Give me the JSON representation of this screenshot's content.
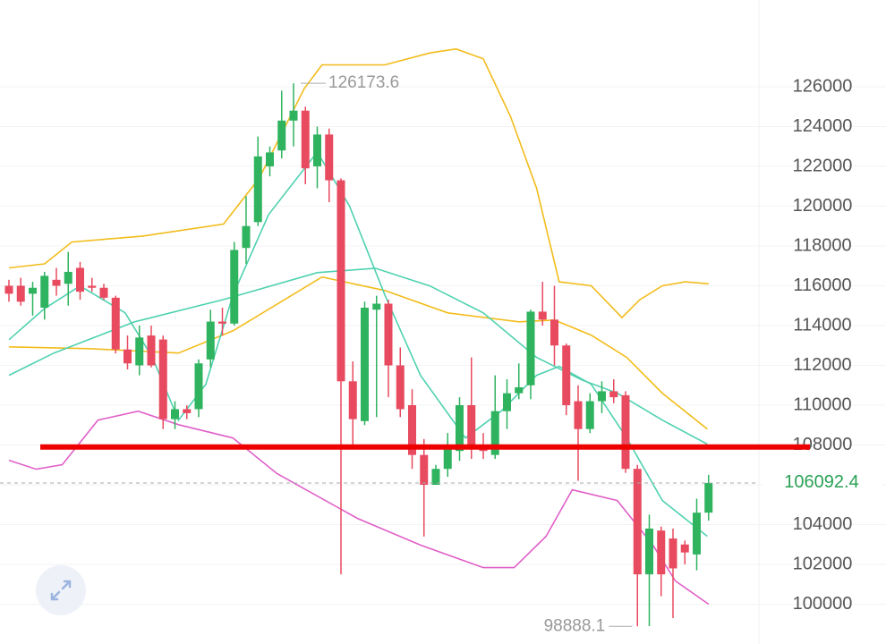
{
  "chart_data": {
    "type": "candlestick",
    "up_color": "#2fb35f",
    "down_color": "#e84a5f",
    "open": [
      116000,
      116000,
      115600,
      114900,
      116300,
      116100,
      116900,
      116000,
      115900,
      115400,
      112800,
      112000,
      113500,
      113300,
      109300,
      109800,
      109800,
      112300,
      114200,
      114100,
      117900,
      119200,
      122000,
      122800,
      124300,
      124800,
      122000,
      123600,
      121300,
      111200,
      109200,
      114800,
      115100,
      112000,
      110000,
      107500,
      106000,
      106800,
      107700,
      110000,
      107900,
      107500,
      109700,
      110600,
      111000,
      114700,
      114300,
      113000,
      110200,
      108800,
      110200,
      110700,
      110500,
      106800,
      101500,
      103700,
      103300,
      103000,
      102500,
      104600
    ],
    "high": [
      116300,
      116400,
      116200,
      116700,
      116900,
      117700,
      117200,
      116400,
      116100,
      115500,
      113500,
      114000,
      114000,
      113500,
      110200,
      110000,
      112300,
      114800,
      114900,
      118200,
      120500,
      123500,
      123000,
      125800,
      126173.6,
      125000,
      124000,
      123900,
      121400,
      112200,
      115200,
      115500,
      115300,
      112900,
      110800,
      108300,
      107000,
      108600,
      110400,
      112400,
      108600,
      111500,
      111300,
      112100,
      114800,
      116200,
      116000,
      113100,
      111000,
      110600,
      111200,
      111300,
      110700,
      107000,
      104500,
      103900,
      103800,
      103200,
      105300,
      106500
    ],
    "low": [
      115200,
      115000,
      114500,
      114300,
      115500,
      115000,
      115300,
      115700,
      115300,
      112600,
      111800,
      111500,
      111900,
      108800,
      108800,
      109300,
      109400,
      111900,
      113500,
      114000,
      117100,
      119000,
      121500,
      122400,
      123000,
      121100,
      120900,
      120200,
      101500,
      107800,
      109000,
      109400,
      110400,
      109400,
      106800,
      103400,
      106000,
      106400,
      107200,
      107300,
      107300,
      107300,
      108800,
      110300,
      110300,
      114000,
      112000,
      109500,
      106200,
      108600,
      109600,
      110100,
      106600,
      98888.1,
      98900,
      100400,
      99300,
      102000,
      101700,
      104200
    ],
    "close": [
      115600,
      115200,
      115900,
      116500,
      116000,
      116700,
      115700,
      115900,
      115400,
      112800,
      112100,
      113400,
      112000,
      109300,
      109800,
      109600,
      112100,
      114200,
      114100,
      117800,
      119000,
      122500,
      122700,
      124300,
      124800,
      121900,
      123600,
      121300,
      111200,
      109300,
      114900,
      115100,
      112000,
      109800,
      107500,
      106000,
      106800,
      107800,
      110000,
      107900,
      107700,
      109700,
      110600,
      110900,
      114700,
      114300,
      113000,
      110000,
      108800,
      110200,
      110700,
      110400,
      106800,
      101500,
      103800,
      101500,
      101800,
      102600,
      104600,
      106092.4
    ],
    "lines": [
      {
        "color": "#f2bc1b",
        "x": [
          0,
          3,
          5.3,
          11.3,
          18.1,
          21.1,
          24.9,
          26.4,
          31.7,
          35.5,
          37.7,
          40,
          42.3,
          44.5,
          46.4,
          49.1,
          51.7,
          53.2,
          55.1,
          57,
          59
        ],
        "values": [
          116900,
          117100,
          118200,
          118500,
          119100,
          121400,
          125900,
          127100,
          127100,
          127700,
          127900,
          127400,
          124500,
          120900,
          116200,
          116000,
          114400,
          115300,
          116000,
          116200,
          116100
        ]
      },
      {
        "color": "#f2bc1b",
        "x": [
          0,
          6.8,
          14.3,
          18.9,
          26.4,
          31.7,
          37,
          43,
          46,
          49.1,
          52.1,
          55.1,
          58.9
        ],
        "values": [
          112930,
          112840,
          112620,
          113740,
          116440,
          115760,
          114640,
          114190,
          114280,
          113520,
          112400,
          110600,
          108800
        ]
      },
      {
        "color": "#4fd1b0",
        "x": [
          0,
          3,
          6,
          9.8,
          12.1,
          14.3,
          16.6,
          18.9,
          21.9,
          26,
          28.7,
          31.7,
          34.7,
          38.5,
          41.5,
          44.5,
          46.4,
          49.1,
          52.1,
          55.1,
          58.9
        ],
        "values": [
          113290,
          114860,
          115990,
          114640,
          112400,
          109250,
          111050,
          115540,
          119580,
          122720,
          120030,
          115540,
          111500,
          108350,
          109700,
          111500,
          111950,
          111050,
          108350,
          105210,
          103410
        ]
      },
      {
        "color": "#4fd1b0",
        "x": [
          0,
          3.8,
          10.6,
          18.1,
          26,
          30.9,
          35.5,
          40,
          44.5,
          48.3,
          51.3,
          55.1,
          58.9
        ],
        "values": [
          111500,
          112620,
          114190,
          115310,
          116660,
          116880,
          115990,
          114640,
          112400,
          111270,
          110600,
          109250,
          108040
        ]
      },
      {
        "color": "#e060c8",
        "x": [
          0,
          2.3,
          4.5,
          7.5,
          10.9,
          14.3,
          18.9,
          22.6,
          29.4,
          34.7,
          40,
          42.6,
          45.3,
          47.5,
          51.3,
          54.3,
          56.2,
          59
        ],
        "values": [
          107230,
          106780,
          107010,
          109250,
          109700,
          109020,
          108350,
          106560,
          104310,
          102970,
          101840,
          101840,
          103410,
          105750,
          105210,
          102970,
          101170,
          100000
        ]
      }
    ],
    "horizontal_line": {
      "value": 107900,
      "color": "#ee0000"
    },
    "ylim": [
      98000,
      130000
    ],
    "yticks": [
      100000,
      102000,
      104000,
      106000,
      108000,
      110000,
      112000,
      114000,
      116000,
      118000,
      120000,
      122000,
      124000,
      126000
    ],
    "grid": true
  }
}
